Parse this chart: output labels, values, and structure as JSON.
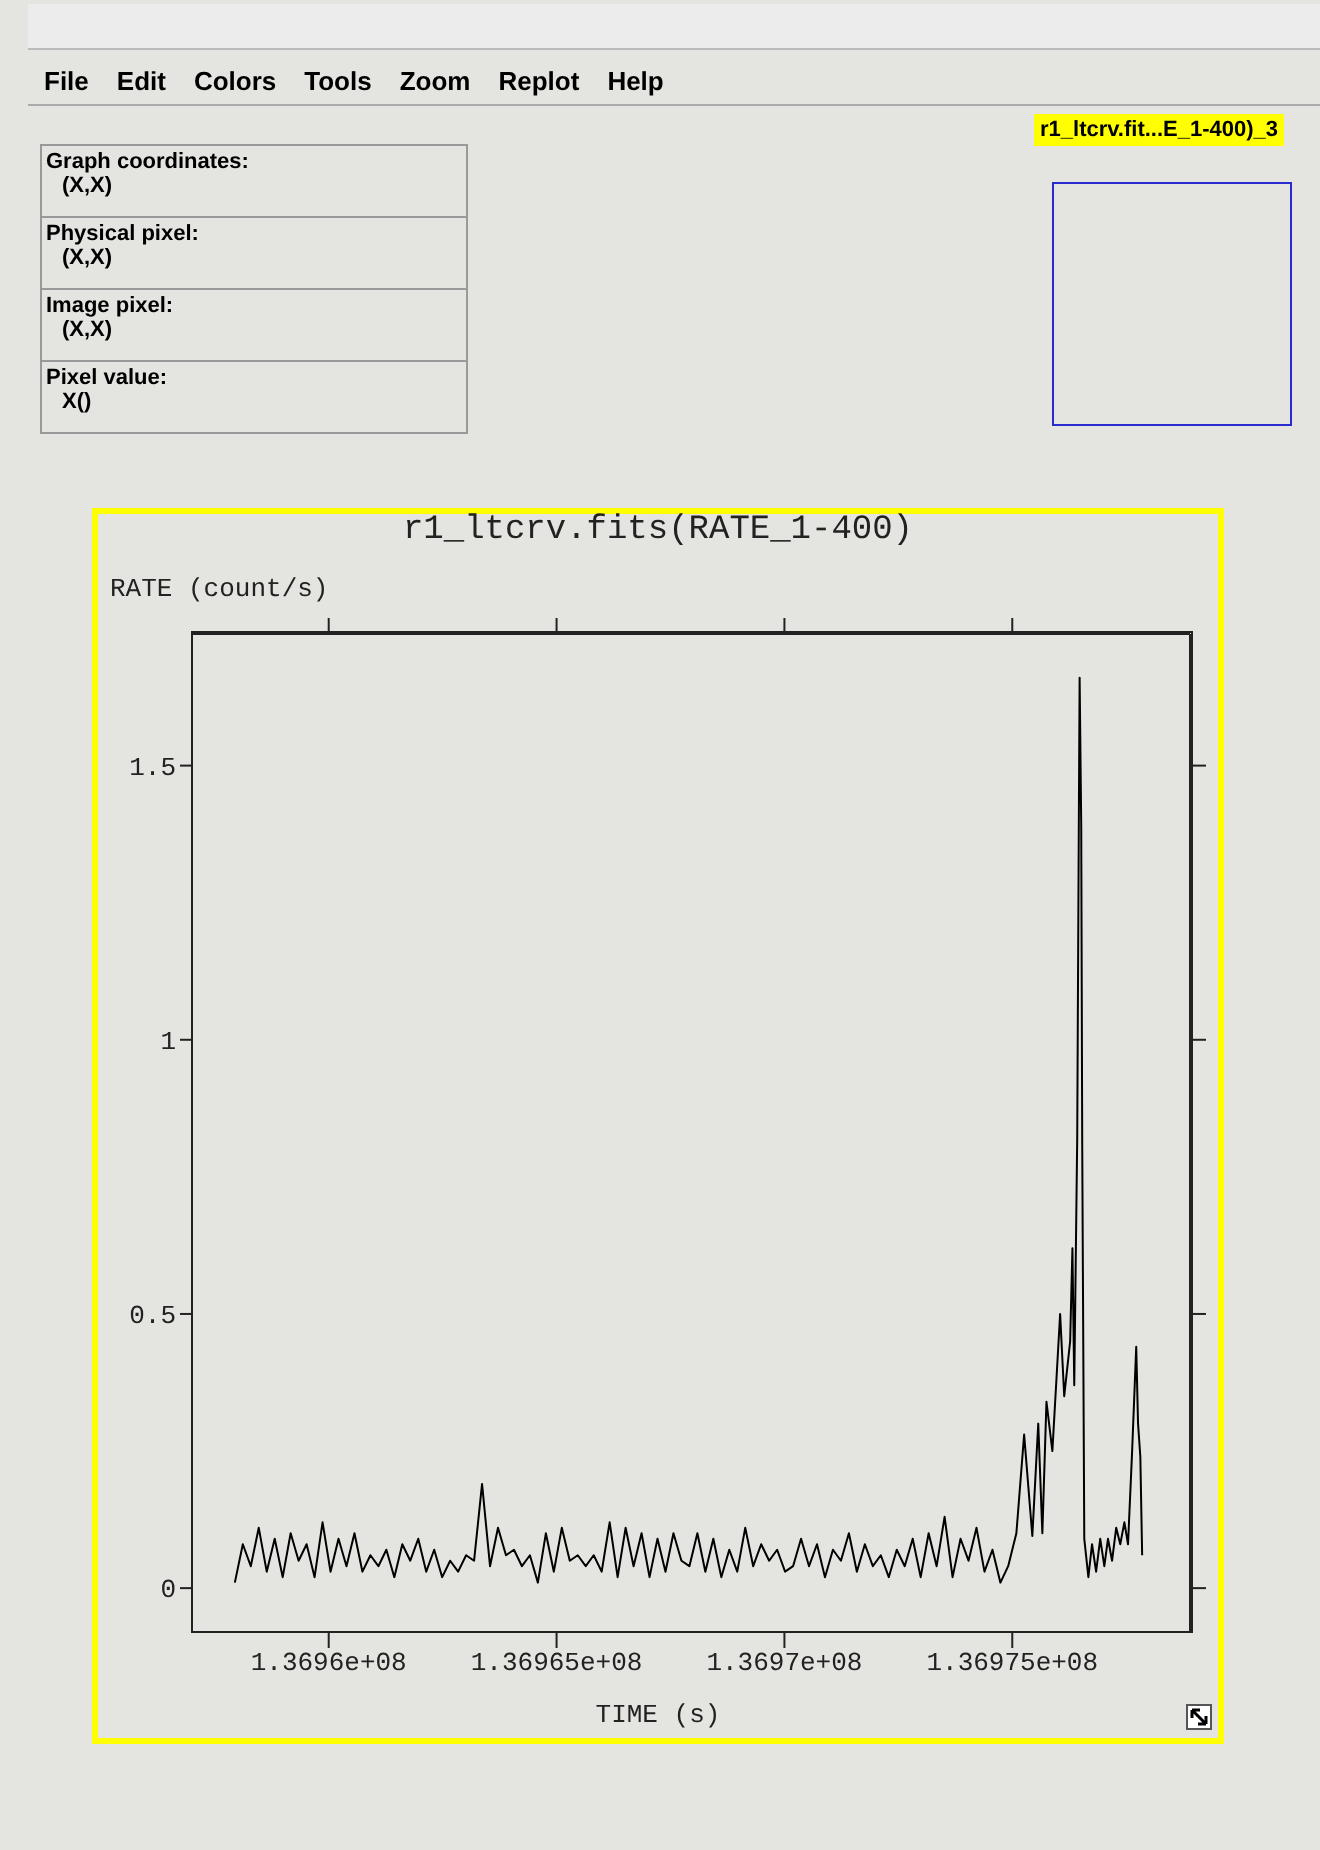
{
  "chart_data": {
    "type": "line",
    "title": "r1_ltcrv.fits(RATE_1-400)",
    "xlabel": "TIME (s)",
    "ylabel": "RATE (count/s)",
    "annotations": [
      "File",
      "Edit",
      "Colors",
      "Tools",
      "Zoom",
      "Replot",
      "Help",
      "Graph coordinates:",
      "(X,X)",
      "Physical pixel:",
      "(X,X)",
      "Image pixel:",
      "(X,X)",
      "Pixel value:",
      "X()",
      "r1_ltcrv.fit...E_1-400)_3"
    ],
    "xlim": [
      136957000,
      136978900
    ],
    "xticks": [
      {
        "value": 136960000,
        "label": "1.3696e+08"
      },
      {
        "value": 136965000,
        "label": "1.36965e+08"
      },
      {
        "value": 136970000,
        "label": "1.3697e+08"
      },
      {
        "value": 136975000,
        "label": "1.36975e+08"
      }
    ],
    "ylim": [
      -0.08,
      1.74
    ],
    "yticks": [
      0,
      0.5,
      1,
      1.5
    ],
    "grid": false,
    "legend": false,
    "marker": "none",
    "line_style": "solid",
    "series": [
      {
        "color": "#000000",
        "x": [
          136957940,
          136958115,
          136958290,
          136958465,
          136958640,
          136958815,
          136958990,
          136959165,
          136959340,
          136959515,
          136959690,
          136959865,
          136960040,
          136960215,
          136960390,
          136960565,
          136960740,
          136960915,
          136961090,
          136961265,
          136961440,
          136961615,
          136961790,
          136961965,
          136962140,
          136962315,
          136962490,
          136962665,
          136962840,
          136963015,
          136963190,
          136963365,
          136963540,
          136963715,
          136963890,
          136964065,
          136964240,
          136964415,
          136964590,
          136964765,
          136964940,
          136965115,
          136965290,
          136965465,
          136965640,
          136965815,
          136965990,
          136966165,
          136966340,
          136966515,
          136966690,
          136966865,
          136967040,
          136967215,
          136967390,
          136967565,
          136967740,
          136967915,
          136968090,
          136968265,
          136968440,
          136968615,
          136968790,
          136968965,
          136969140,
          136969315,
          136969490,
          136969665,
          136969840,
          136970015,
          136970190,
          136970365,
          136970540,
          136970715,
          136970890,
          136971065,
          136971240,
          136971415,
          136971590,
          136971765,
          136971940,
          136972115,
          136972290,
          136972465,
          136972640,
          136972815,
          136972990,
          136973165,
          136973340,
          136973515,
          136973690,
          136973865,
          136974040,
          136974215,
          136974390,
          136974565,
          136974740,
          136974910,
          136975090,
          136975260,
          136975440,
          136975570,
          136975660,
          136975750,
          136975880,
          136976050,
          136976140,
          136976270,
          136976320,
          136976360,
          136976425,
          136976460,
          136976478,
          136976513,
          136976535,
          136976580,
          136976670,
          136976750,
          136976840,
          136976930,
          136977020,
          136977100,
          136977190,
          136977280,
          136977370,
          136977460,
          136977540,
          136977630,
          136977720,
          136977760,
          136977810,
          136977850
        ],
        "values": [
          0.01,
          0.08,
          0.04,
          0.11,
          0.03,
          0.09,
          0.02,
          0.1,
          0.05,
          0.08,
          0.02,
          0.12,
          0.03,
          0.09,
          0.04,
          0.1,
          0.03,
          0.06,
          0.04,
          0.07,
          0.02,
          0.08,
          0.05,
          0.09,
          0.03,
          0.07,
          0.02,
          0.05,
          0.03,
          0.06,
          0.05,
          0.19,
          0.04,
          0.11,
          0.06,
          0.07,
          0.04,
          0.06,
          0.01,
          0.1,
          0.03,
          0.11,
          0.05,
          0.06,
          0.04,
          0.06,
          0.03,
          0.12,
          0.02,
          0.11,
          0.04,
          0.1,
          0.02,
          0.09,
          0.03,
          0.1,
          0.05,
          0.04,
          0.1,
          0.03,
          0.09,
          0.02,
          0.07,
          0.03,
          0.11,
          0.04,
          0.08,
          0.05,
          0.07,
          0.03,
          0.04,
          0.09,
          0.04,
          0.08,
          0.02,
          0.07,
          0.05,
          0.1,
          0.03,
          0.08,
          0.04,
          0.06,
          0.02,
          0.07,
          0.04,
          0.09,
          0.02,
          0.1,
          0.04,
          0.13,
          0.02,
          0.09,
          0.05,
          0.11,
          0.03,
          0.07,
          0.01,
          0.04,
          0.1,
          0.28,
          0.095,
          0.3,
          0.1,
          0.34,
          0.25,
          0.5,
          0.35,
          0.45,
          0.62,
          0.37,
          0.82,
          1.39,
          1.66,
          1.39,
          0.81,
          0.09,
          0.02,
          0.08,
          0.03,
          0.09,
          0.04,
          0.09,
          0.05,
          0.11,
          0.08,
          0.12,
          0.08,
          0.25,
          0.44,
          0.3,
          0.24,
          0.06
        ]
      }
    ]
  }
}
